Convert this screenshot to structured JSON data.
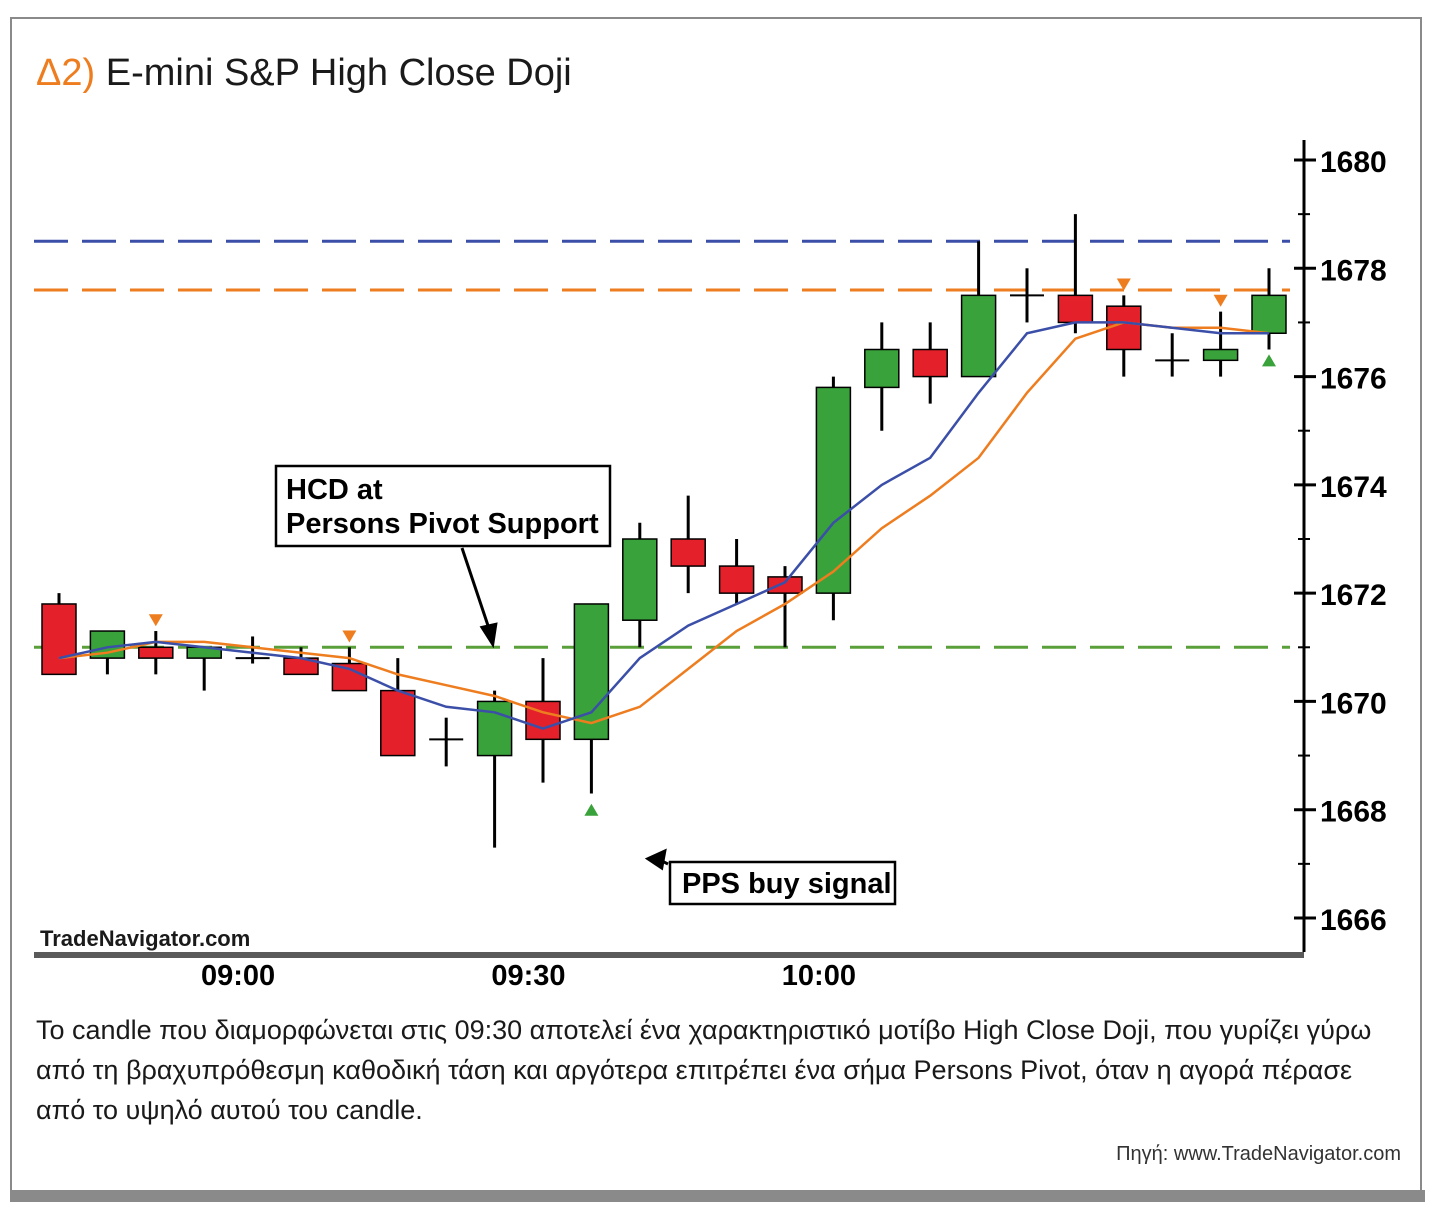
{
  "header": {
    "prefix": "Δ2)",
    "title": "E-mini S&P High Close Doji"
  },
  "caption": "Το candle που διαμορφώνεται στις 09:30 αποτελεί ένα χαρακτηριστικό μοτίβο High Close Doji, που γυρίζει γύρω από τη βραχυπρόθεσμη καθοδική τάση και αργότερα επιτρέπει ένα σήμα Persons Pivot, όταν η αγορά πέρασε από το υψηλό αυτού του candle.",
  "source": "Πηγή: www.TradeNavigator.com",
  "chart_data": {
    "type": "candlestick",
    "watermark": "TradeNavigator.com",
    "ylim": [
      1665.4,
      1680.5
    ],
    "y_ticks": [
      1666,
      1668,
      1670,
      1672,
      1674,
      1676,
      1678,
      1680
    ],
    "x_ticks": [
      {
        "label": "09:00",
        "index": 3.7
      },
      {
        "label": "09:30",
        "index": 9.7
      },
      {
        "label": "10:00",
        "index": 15.7
      }
    ],
    "candles": [
      {
        "o": 1671.8,
        "h": 1672.0,
        "l": 1670.5,
        "c": 1670.5,
        "color": "red"
      },
      {
        "o": 1670.8,
        "h": 1671.3,
        "l": 1670.5,
        "c": 1671.3,
        "color": "green"
      },
      {
        "o": 1671.0,
        "h": 1671.3,
        "l": 1670.5,
        "c": 1670.8,
        "color": "red"
      },
      {
        "o": 1670.8,
        "h": 1671.0,
        "l": 1670.2,
        "c": 1671.0,
        "color": "green"
      },
      {
        "o": 1670.8,
        "h": 1671.2,
        "l": 1670.7,
        "c": 1670.8,
        "color": "doji"
      },
      {
        "o": 1670.8,
        "h": 1671.0,
        "l": 1670.5,
        "c": 1670.5,
        "color": "red"
      },
      {
        "o": 1670.7,
        "h": 1671.0,
        "l": 1670.2,
        "c": 1670.2,
        "color": "red"
      },
      {
        "o": 1670.2,
        "h": 1670.8,
        "l": 1669.0,
        "c": 1669.0,
        "color": "red"
      },
      {
        "o": 1669.3,
        "h": 1669.7,
        "l": 1668.8,
        "c": 1669.3,
        "color": "doji"
      },
      {
        "o": 1669.0,
        "h": 1670.2,
        "l": 1667.3,
        "c": 1670.0,
        "color": "green"
      },
      {
        "o": 1670.0,
        "h": 1670.8,
        "l": 1668.5,
        "c": 1669.3,
        "color": "red"
      },
      {
        "o": 1669.3,
        "h": 1671.8,
        "l": 1668.3,
        "c": 1671.8,
        "color": "green"
      },
      {
        "o": 1671.5,
        "h": 1673.3,
        "l": 1671.0,
        "c": 1673.0,
        "color": "green"
      },
      {
        "o": 1673.0,
        "h": 1673.8,
        "l": 1672.0,
        "c": 1672.5,
        "color": "red"
      },
      {
        "o": 1672.5,
        "h": 1673.0,
        "l": 1671.8,
        "c": 1672.0,
        "color": "red"
      },
      {
        "o": 1672.3,
        "h": 1672.5,
        "l": 1671.0,
        "c": 1672.0,
        "color": "red"
      },
      {
        "o": 1672.0,
        "h": 1676.0,
        "l": 1671.5,
        "c": 1675.8,
        "color": "green"
      },
      {
        "o": 1675.8,
        "h": 1677.0,
        "l": 1675.0,
        "c": 1676.5,
        "color": "green"
      },
      {
        "o": 1676.5,
        "h": 1677.0,
        "l": 1675.5,
        "c": 1676.0,
        "color": "red"
      },
      {
        "o": 1676.0,
        "h": 1678.5,
        "l": 1676.0,
        "c": 1677.5,
        "color": "green"
      },
      {
        "o": 1677.5,
        "h": 1678.0,
        "l": 1677.0,
        "c": 1677.5,
        "color": "doji"
      },
      {
        "o": 1677.5,
        "h": 1679.0,
        "l": 1676.8,
        "c": 1677.0,
        "color": "red"
      },
      {
        "o": 1677.3,
        "h": 1677.5,
        "l": 1676.0,
        "c": 1676.5,
        "color": "red"
      },
      {
        "o": 1676.3,
        "h": 1676.8,
        "l": 1676.0,
        "c": 1676.3,
        "color": "doji"
      },
      {
        "o": 1676.3,
        "h": 1677.2,
        "l": 1676.0,
        "c": 1676.5,
        "color": "green"
      },
      {
        "o": 1676.8,
        "h": 1678.0,
        "l": 1676.5,
        "c": 1677.5,
        "color": "green"
      }
    ],
    "ma_fast": [
      1670.8,
      1671.0,
      1671.1,
      1671.0,
      1670.9,
      1670.8,
      1670.6,
      1670.2,
      1669.9,
      1669.8,
      1669.5,
      1669.8,
      1670.8,
      1671.4,
      1671.8,
      1672.2,
      1673.3,
      1674.0,
      1674.5,
      1675.7,
      1676.8,
      1677.0,
      1677.0,
      1676.9,
      1676.8,
      1676.8
    ],
    "ma_slow": [
      1670.8,
      1670.9,
      1671.1,
      1671.1,
      1671.0,
      1670.9,
      1670.8,
      1670.5,
      1670.3,
      1670.1,
      1669.8,
      1669.6,
      1669.9,
      1670.6,
      1671.3,
      1671.8,
      1672.4,
      1673.2,
      1673.8,
      1674.5,
      1675.7,
      1676.7,
      1677.0,
      1676.9,
      1676.9,
      1676.8
    ],
    "horizontal_lines": [
      {
        "y": 1678.5,
        "color": "#3b4fa8"
      },
      {
        "y": 1677.6,
        "color": "#ee7d1f"
      },
      {
        "y": 1671.0,
        "color": "#5aa03a"
      }
    ],
    "sell_markers": [
      {
        "index": 2,
        "y": 1671.5
      },
      {
        "index": 6,
        "y": 1671.2
      },
      {
        "index": 22,
        "y": 1677.7
      },
      {
        "index": 24,
        "y": 1677.4
      }
    ],
    "buy_markers": [
      {
        "index": 11,
        "y": 1668.0
      },
      {
        "index": 25,
        "y": 1676.3
      }
    ],
    "annotations": [
      {
        "text": "HCD at\nPersons Pivot Support",
        "target_index": 9,
        "target_y": 1670.5
      },
      {
        "text": "PPS buy signal",
        "target_index": 12,
        "target_y": 1667.1
      }
    ]
  }
}
